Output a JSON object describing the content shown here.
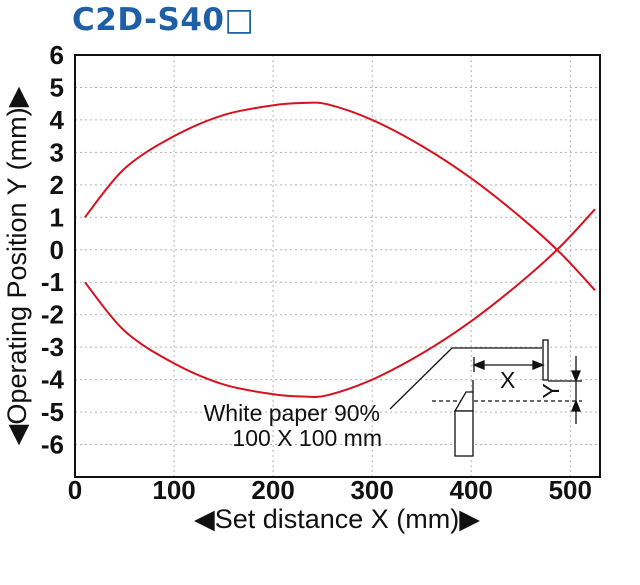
{
  "chart_data": {
    "type": "line",
    "title": "C2D-S40□",
    "xlabel": "◀Set distance X (mm)▶",
    "ylabel": "◀Operating Position Y (mm)▶",
    "xlim": [
      0,
      530
    ],
    "ylim": [
      -7,
      6
    ],
    "x_ticks": [
      "0",
      "100",
      "200",
      "300",
      "400",
      "500"
    ],
    "y_ticks": [
      "6",
      "5",
      "4",
      "3",
      "2",
      "1",
      "0",
      "-1",
      "-2",
      "-3",
      "-4",
      "-5",
      "-6"
    ],
    "grid": true,
    "line_color": "#d7121e",
    "series": [
      {
        "x": [
          10,
          50,
          100,
          150,
          200,
          230,
          255,
          300,
          350,
          400,
          450,
          490,
          525
        ],
        "values": [
          1.0,
          2.5,
          3.5,
          4.15,
          4.45,
          4.52,
          4.48,
          4.0,
          3.2,
          2.2,
          1.0,
          -0.1,
          -1.25
        ]
      },
      {
        "x": [
          10,
          50,
          100,
          150,
          200,
          230,
          255,
          300,
          350,
          400,
          450,
          490,
          525
        ],
        "values": [
          -1.0,
          -2.5,
          -3.5,
          -4.15,
          -4.45,
          -4.52,
          -4.48,
          -4.0,
          -3.2,
          -2.2,
          -1.0,
          0.1,
          1.25
        ]
      }
    ],
    "annotations": [
      "White paper 90%",
      "100 X 100 mm",
      "X",
      "Y"
    ]
  }
}
